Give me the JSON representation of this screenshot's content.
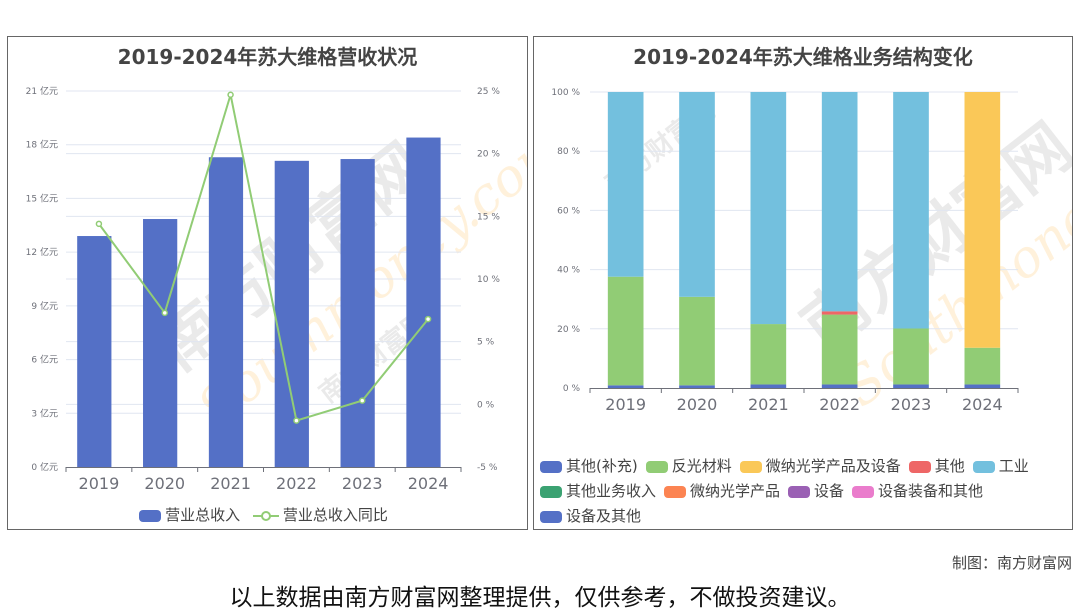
{
  "watermark": {
    "cn": "南方财富网",
    "en": "Southmoney.com"
  },
  "chart_data": [
    {
      "type": "bar",
      "title": "2019-2024年苏大维格营收状况",
      "categories": [
        "2019",
        "2020",
        "2021",
        "2022",
        "2023",
        "2024"
      ],
      "series": [
        {
          "name": "营业总收入",
          "type": "bar",
          "axis": "left",
          "color": "#5470c6",
          "values": [
            12.9,
            13.85,
            17.3,
            17.1,
            17.2,
            18.4
          ]
        },
        {
          "name": "营业总收入同比",
          "type": "line",
          "axis": "right",
          "color": "#91cc75",
          "values": [
            14.4,
            7.3,
            24.7,
            -1.3,
            0.3,
            6.8
          ]
        }
      ],
      "y_left": {
        "ylim": [
          0,
          21
        ],
        "ticks": [
          0,
          3,
          6,
          9,
          12,
          15,
          18,
          21
        ],
        "unit": "亿元",
        "tick_labels": [
          "0 亿元",
          "3 亿元",
          "6 亿元",
          "9 亿元",
          "12 亿元",
          "15 亿元",
          "18 亿元",
          "21 亿元"
        ]
      },
      "y_right": {
        "ylim": [
          -5,
          25
        ],
        "ticks": [
          -5,
          0,
          5,
          10,
          15,
          20,
          25
        ],
        "unit": "%",
        "tick_labels": [
          "-5 %",
          "0 %",
          "5 %",
          "10 %",
          "15 %",
          "20 %",
          "25 %"
        ]
      },
      "grid": true,
      "legend": "bottom"
    },
    {
      "type": "bar",
      "stacked": true,
      "title": "2019-2024年苏大维格业务结构变化",
      "categories": [
        "2019",
        "2020",
        "2021",
        "2022",
        "2023",
        "2024"
      ],
      "ylim": [
        0,
        100
      ],
      "y_tick_labels": [
        "0 %",
        "20 %",
        "40 %",
        "60 %",
        "80 %",
        "100 %"
      ],
      "y_ticks": [
        0,
        20,
        40,
        60,
        80,
        100
      ],
      "series": [
        {
          "name": "其他(补充)",
          "color": "#5470c6",
          "values": [
            0.9,
            0.9,
            1.2,
            1.2,
            1.2,
            1.2
          ]
        },
        {
          "name": "反光材料",
          "color": "#91cc75",
          "values": [
            36.7,
            29.9,
            20.4,
            23.6,
            18.9,
            12.4
          ]
        },
        {
          "name": "微纳光学产品及设备",
          "color": "#fac858",
          "values": [
            0,
            0,
            0,
            0,
            0,
            86.4
          ]
        },
        {
          "name": "其他",
          "color": "#ee6666",
          "values": [
            0,
            0,
            0,
            1.1,
            0,
            0
          ]
        },
        {
          "name": "工业",
          "color": "#73c0de",
          "values": [
            62.4,
            69.2,
            78.4,
            74.1,
            79.9,
            0
          ]
        },
        {
          "name": "其他业务收入",
          "color": "#3ba272",
          "values": [
            0,
            0,
            0,
            0,
            0,
            0
          ]
        },
        {
          "name": "微纳光学产品",
          "color": "#fc8452",
          "values": [
            0,
            0,
            0,
            0,
            0,
            0
          ]
        },
        {
          "name": "设备",
          "color": "#9a60b4",
          "values": [
            0,
            0,
            0,
            0,
            0,
            0
          ]
        },
        {
          "name": "设备装备和其他",
          "color": "#ea7ccc",
          "values": [
            0,
            0,
            0,
            0,
            0,
            0
          ]
        },
        {
          "name": "设备及其他",
          "color": "#5470c6",
          "values": [
            0,
            0,
            0,
            0,
            0,
            0
          ]
        }
      ],
      "grid": true,
      "legend": "bottom"
    }
  ],
  "footer": {
    "credit": "制图：南方财富网",
    "disclaimer": "以上数据由南方财富网整理提供，仅供参考，不做投资建议。"
  }
}
